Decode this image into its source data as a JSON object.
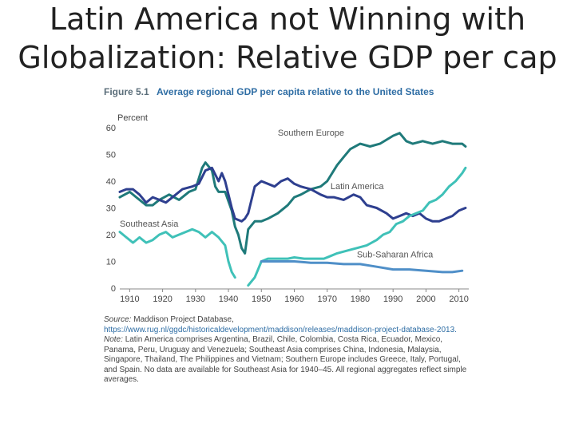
{
  "slide": {
    "title_line1": "Latin America not Winning with",
    "title_line2": "Globalization: Relative GDP per cap"
  },
  "figure": {
    "label": "Figure 5.1",
    "title": "Average regional GDP per capita relative to the United States",
    "source_label": "Source:",
    "source_text": "Maddison Project Database,",
    "source_url": "https://www.rug.nl/ggdc/historicaldevelopment/maddison/releases/maddison-project-database-2013.",
    "note_label": "Note:",
    "note_text": "Latin America comprises Argentina, Brazil, Chile, Colombia, Costa Rica, Ecuador, Mexico, Panama, Peru, Uruguay and Venezuela; Southeast Asia comprises China, Indonesia, Malaysia, Singapore, Thailand, The Philippines and Vietnam; Southern Europe includes Greece, Italy, Portugal, and Spain. No data are available for Southeast Asia for 1940–45. All regional aggregates reflect simple averages."
  },
  "chart_data": {
    "type": "line",
    "ylabel": "Percent",
    "xlim": [
      1907,
      2013
    ],
    "ylim": [
      0,
      60
    ],
    "xticks": [
      1910,
      1920,
      1930,
      1940,
      1950,
      1960,
      1970,
      1980,
      1990,
      2000,
      2010
    ],
    "yticks": [
      0,
      10,
      20,
      30,
      40,
      50,
      60
    ],
    "grid": false,
    "legend": "inline labels",
    "series": [
      {
        "name": "Southern Europe",
        "color": "#1f7a7a",
        "segments": [
          [
            [
              1907,
              34
            ],
            [
              1910,
              36
            ],
            [
              1912,
              34
            ],
            [
              1915,
              31
            ],
            [
              1917,
              31
            ],
            [
              1919,
              33
            ],
            [
              1922,
              35
            ],
            [
              1925,
              33
            ],
            [
              1928,
              36
            ],
            [
              1930,
              37
            ],
            [
              1932,
              45
            ],
            [
              1933,
              47
            ],
            [
              1935,
              44
            ],
            [
              1936,
              38
            ],
            [
              1937,
              36
            ],
            [
              1939,
              36
            ],
            [
              1941,
              29
            ],
            [
              1942,
              23
            ],
            [
              1943,
              20
            ],
            [
              1944,
              15
            ],
            [
              1945,
              13
            ],
            [
              1946,
              22
            ],
            [
              1948,
              25
            ],
            [
              1950,
              25
            ],
            [
              1952,
              26
            ],
            [
              1955,
              28
            ],
            [
              1958,
              31
            ],
            [
              1960,
              34
            ],
            [
              1962,
              35
            ],
            [
              1965,
              37
            ],
            [
              1968,
              38
            ],
            [
              1970,
              40
            ],
            [
              1973,
              46
            ],
            [
              1975,
              49
            ],
            [
              1977,
              52
            ],
            [
              1980,
              54
            ],
            [
              1983,
              53
            ],
            [
              1986,
              54
            ],
            [
              1990,
              57
            ],
            [
              1992,
              58
            ],
            [
              1994,
              55
            ],
            [
              1996,
              54
            ],
            [
              1999,
              55
            ],
            [
              2002,
              54
            ],
            [
              2005,
              55
            ],
            [
              2008,
              54
            ],
            [
              2011,
              54
            ],
            [
              2012,
              53
            ]
          ]
        ]
      },
      {
        "name": "Latin America",
        "color": "#2e3f8f",
        "segments": [
          [
            [
              1907,
              36
            ],
            [
              1909,
              37
            ],
            [
              1911,
              37
            ],
            [
              1913,
              35
            ],
            [
              1915,
              32
            ],
            [
              1917,
              34
            ],
            [
              1919,
              33
            ],
            [
              1921,
              32
            ],
            [
              1924,
              35
            ],
            [
              1926,
              37
            ],
            [
              1929,
              38
            ],
            [
              1931,
              39
            ],
            [
              1933,
              44
            ],
            [
              1935,
              45
            ],
            [
              1937,
              40
            ],
            [
              1938,
              43
            ],
            [
              1939,
              40
            ],
            [
              1941,
              30
            ],
            [
              1942,
              26
            ],
            [
              1944,
              25
            ],
            [
              1945,
              26
            ],
            [
              1946,
              28
            ],
            [
              1948,
              38
            ],
            [
              1950,
              40
            ],
            [
              1952,
              39
            ],
            [
              1954,
              38
            ],
            [
              1956,
              40
            ],
            [
              1958,
              41
            ],
            [
              1960,
              39
            ],
            [
              1962,
              38
            ],
            [
              1965,
              37
            ],
            [
              1968,
              35
            ],
            [
              1970,
              34
            ],
            [
              1972,
              34
            ],
            [
              1975,
              33
            ],
            [
              1978,
              35
            ],
            [
              1980,
              34
            ],
            [
              1982,
              31
            ],
            [
              1985,
              30
            ],
            [
              1988,
              28
            ],
            [
              1990,
              26
            ],
            [
              1992,
              27
            ],
            [
              1994,
              28
            ],
            [
              1996,
              27
            ],
            [
              1998,
              28
            ],
            [
              2000,
              26
            ],
            [
              2002,
              25
            ],
            [
              2004,
              25
            ],
            [
              2006,
              26
            ],
            [
              2008,
              27
            ],
            [
              2010,
              29
            ],
            [
              2012,
              30
            ]
          ]
        ]
      },
      {
        "name": "Southeast Asia",
        "color": "#3fc1b8",
        "segments": [
          [
            [
              1907,
              21
            ],
            [
              1909,
              19
            ],
            [
              1911,
              17
            ],
            [
              1913,
              19
            ],
            [
              1915,
              17
            ],
            [
              1917,
              18
            ],
            [
              1919,
              20
            ],
            [
              1921,
              21
            ],
            [
              1923,
              19
            ],
            [
              1925,
              20
            ],
            [
              1927,
              21
            ],
            [
              1929,
              22
            ],
            [
              1931,
              21
            ],
            [
              1933,
              19
            ],
            [
              1935,
              21
            ],
            [
              1937,
              19
            ],
            [
              1939,
              16
            ],
            [
              1940,
              10
            ],
            [
              1941,
              6
            ],
            [
              1942,
              4
            ]
          ],
          [
            [
              1946,
              1
            ],
            [
              1948,
              4
            ],
            [
              1949,
              7
            ],
            [
              1950,
              10
            ],
            [
              1952,
              11
            ],
            [
              1955,
              11
            ],
            [
              1958,
              11
            ],
            [
              1960,
              11.5
            ],
            [
              1963,
              11
            ],
            [
              1966,
              11
            ],
            [
              1969,
              11
            ],
            [
              1971,
              12
            ],
            [
              1973,
              13
            ],
            [
              1976,
              14
            ],
            [
              1979,
              15
            ],
            [
              1982,
              16
            ],
            [
              1985,
              18
            ],
            [
              1987,
              20
            ],
            [
              1989,
              21
            ],
            [
              1991,
              24
            ],
            [
              1993,
              25
            ],
            [
              1995,
              27
            ],
            [
              1997,
              28
            ],
            [
              1999,
              29
            ],
            [
              2001,
              32
            ],
            [
              2003,
              33
            ],
            [
              2005,
              35
            ],
            [
              2007,
              38
            ],
            [
              2009,
              40
            ],
            [
              2011,
              43
            ],
            [
              2012,
              45
            ]
          ]
        ]
      },
      {
        "name": "Sub-Saharan Africa",
        "color": "#4f8fc8",
        "segments": [
          [
            [
              1950,
              10
            ],
            [
              1955,
              10
            ],
            [
              1960,
              10
            ],
            [
              1965,
              9.5
            ],
            [
              1970,
              9.5
            ],
            [
              1975,
              9
            ],
            [
              1980,
              9
            ],
            [
              1985,
              8
            ],
            [
              1990,
              7
            ],
            [
              1995,
              7
            ],
            [
              2000,
              6.5
            ],
            [
              2005,
              6
            ],
            [
              2008,
              6
            ],
            [
              2011,
              6.5
            ]
          ]
        ]
      }
    ]
  }
}
